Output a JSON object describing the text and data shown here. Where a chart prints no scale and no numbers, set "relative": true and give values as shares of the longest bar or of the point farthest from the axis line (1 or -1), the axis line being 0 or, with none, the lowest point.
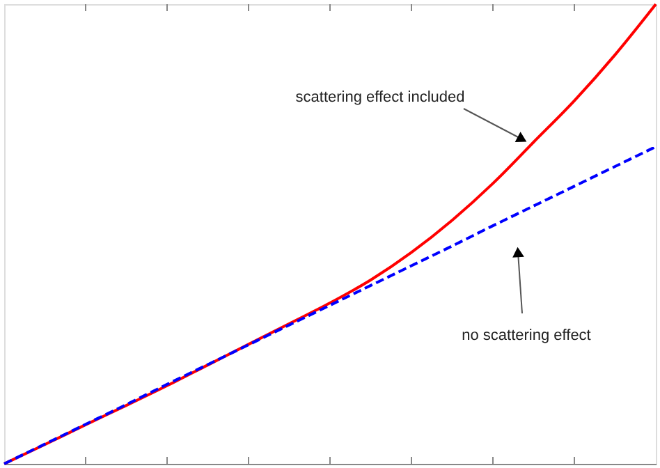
{
  "chart_data": {
    "type": "line",
    "relative": true,
    "categories": [
      null,
      null,
      null,
      null,
      null,
      null,
      null,
      null,
      null,
      null,
      null,
      null,
      null,
      null,
      null,
      null,
      null
    ],
    "grid": false,
    "marker": "none",
    "series": [
      {
        "color": "#ff0000",
        "line_style": "solid",
        "values": [
          0,
          0.042,
          0.085,
          0.127,
          0.17,
          0.215,
          0.26,
          0.305,
          0.35,
          0.4,
          0.46,
          0.53,
          0.61,
          0.7,
          0.79,
          0.89,
          1
        ]
      },
      {
        "color": "#0000ff",
        "line_style": "dashed",
        "values": [
          0,
          0.043,
          0.086,
          0.129,
          0.173,
          0.216,
          0.259,
          0.302,
          0.345,
          0.388,
          0.431,
          0.474,
          0.518,
          0.561,
          0.604,
          0.647,
          0.69
        ]
      }
    ],
    "annotations": [
      "scattering effect included",
      "no scattering effect"
    ]
  }
}
